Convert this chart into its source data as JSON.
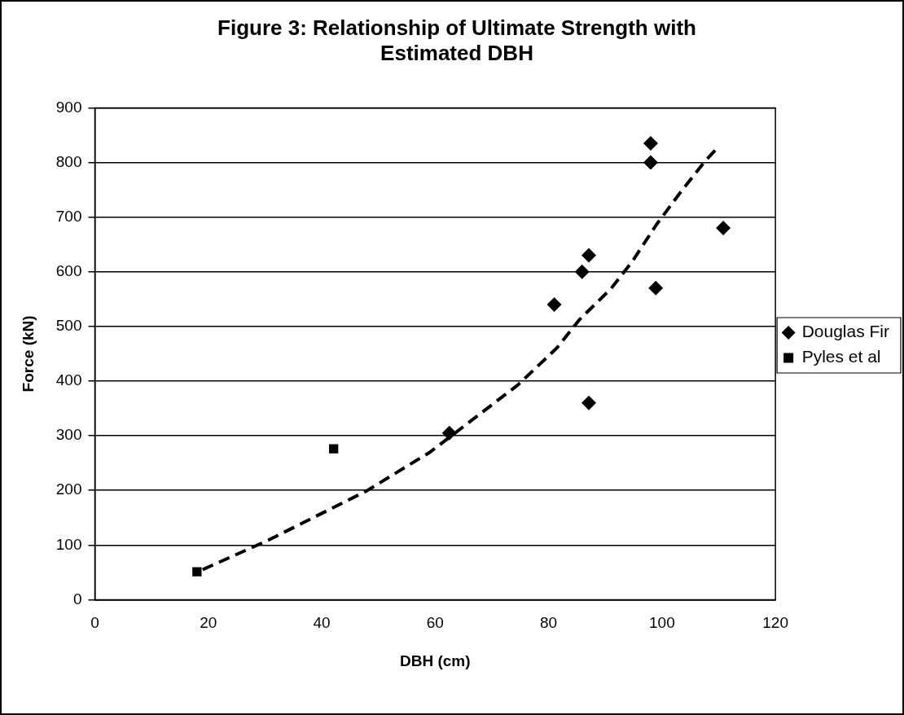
{
  "chart_data": {
    "type": "scatter",
    "title": "Figure 3: Relationship of Ultimate Strength with Estimated DBH",
    "xlabel": "DBH (cm)",
    "ylabel": "Force (kN)",
    "xlim": [
      0,
      120
    ],
    "xticks": [
      0,
      20,
      40,
      60,
      80,
      100,
      120
    ],
    "ylim": [
      0,
      900
    ],
    "yticks": [
      0,
      100,
      200,
      300,
      400,
      500,
      600,
      700,
      800,
      900
    ],
    "grid": "y",
    "legend": "right",
    "series": [
      {
        "name": "Douglas Fir",
        "color": "#000000",
        "marker": "diamond",
        "x": [
          98,
          98,
          110.8,
          87.1,
          85.9,
          81,
          98.9,
          87.1,
          62.5
        ],
        "values": [
          835,
          800,
          680,
          630,
          600,
          540,
          570,
          360,
          305
        ]
      },
      {
        "name": "Pyles et al",
        "color": "#000000",
        "marker": "square",
        "x": [
          18,
          42.1
        ],
        "values": [
          51,
          276
        ]
      },
      {
        "type": "line",
        "color": "#000000",
        "marker": "none",
        "line_style": "dashed",
        "x": [
          19,
          30.6,
          47.9,
          59.1,
          74.6,
          81.5,
          85.5,
          91,
          94.7,
          99,
          103.3,
          107.4,
          109.7
        ],
        "values": [
          55,
          109,
          199,
          270,
          393,
          461,
          513,
          569,
          618,
          686,
          746,
          800,
          826
        ]
      }
    ]
  }
}
